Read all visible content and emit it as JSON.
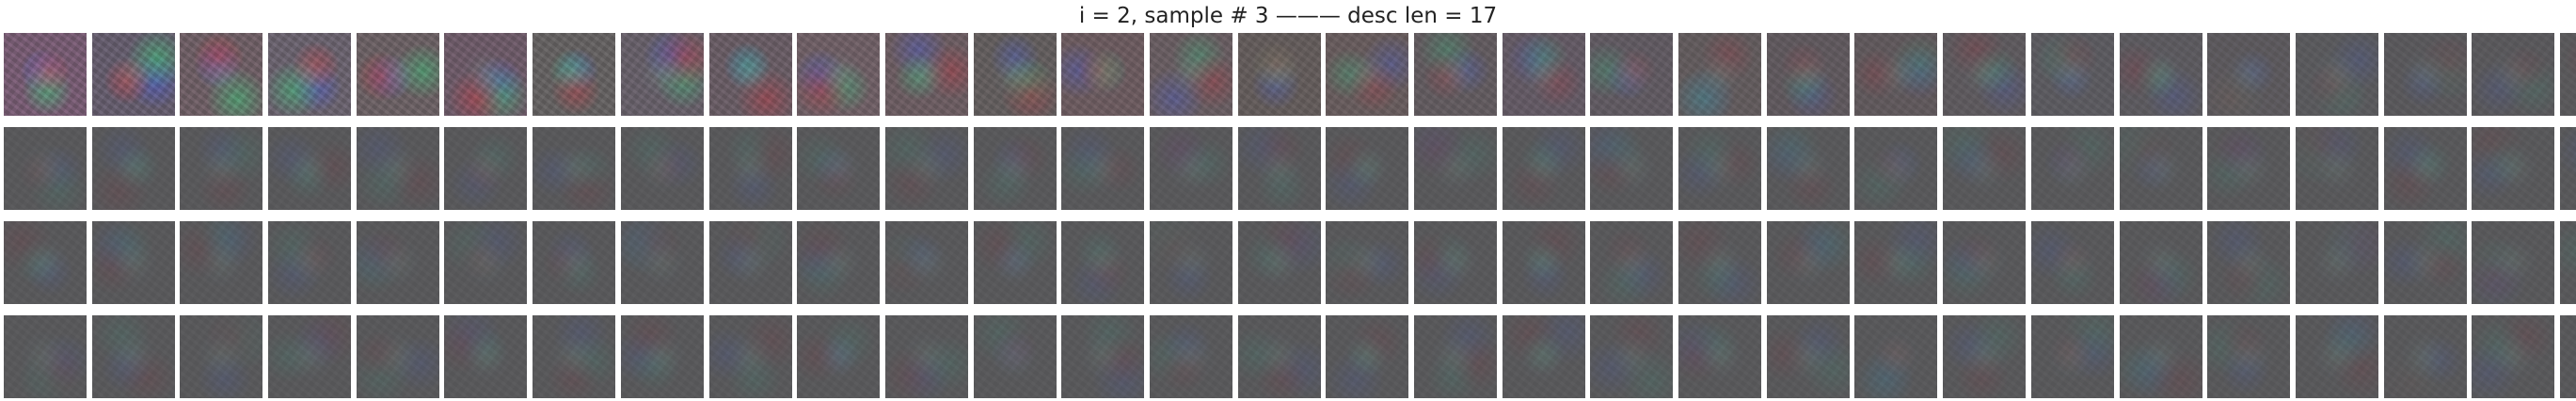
{
  "title": "i = 2, sample # 3 ——— desc len = 17",
  "grid": {
    "rows": 4,
    "columns": 30,
    "tile_description": "generated image sample"
  },
  "colors": {
    "background": "#ffffff",
    "title_text": "#222222",
    "tile_base_late": "#58585a",
    "tile_base_early": "#6a6470"
  }
}
